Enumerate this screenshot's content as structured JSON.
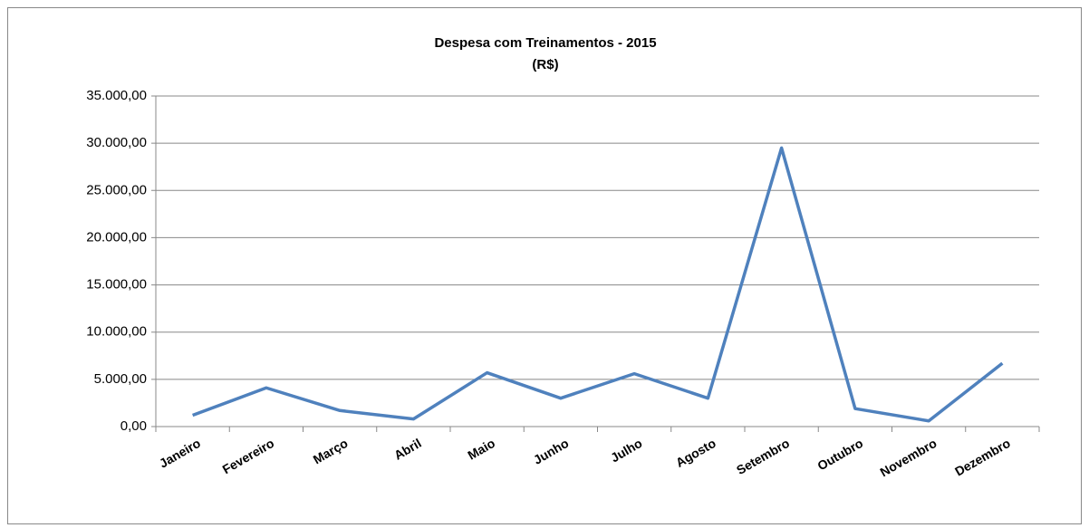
{
  "chart_data": {
    "type": "line",
    "title": "Despesa com Treinamentos - 2015",
    "subtitle": "(R$)",
    "categories": [
      "Janeiro",
      "Fevereiro",
      "Março",
      "Abril",
      "Maio",
      "Junho",
      "Julho",
      "Agosto",
      "Setembro",
      "Outubro",
      "Novembro",
      "Dezembro"
    ],
    "series": [
      {
        "name": "Despesa",
        "color": "#4f81bd",
        "values": [
          1200,
          4100,
          1700,
          800,
          5700,
          3000,
          5600,
          3000,
          29500,
          1900,
          600,
          6700
        ]
      }
    ],
    "ylim": [
      0,
      35000
    ],
    "yticks": [
      {
        "value": 0,
        "label": "0,00"
      },
      {
        "value": 5000,
        "label": "5.000,00"
      },
      {
        "value": 10000,
        "label": "10.000,00"
      },
      {
        "value": 15000,
        "label": "15.000,00"
      },
      {
        "value": 20000,
        "label": "20.000,00"
      },
      {
        "value": 25000,
        "label": "25.000,00"
      },
      {
        "value": 30000,
        "label": "30.000,00"
      },
      {
        "value": 35000,
        "label": "35.000,00"
      }
    ],
    "grid": true
  }
}
